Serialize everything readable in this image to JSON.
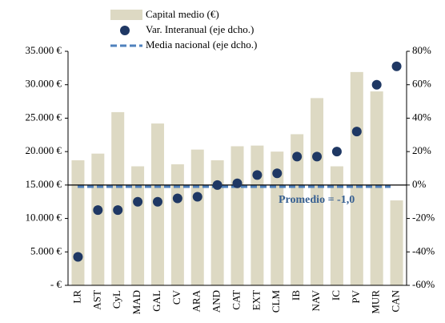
{
  "chart_data": {
    "type": "bar",
    "categories": [
      "LR",
      "AST",
      "CyL",
      "MAD",
      "GAL",
      "CV",
      "ARA",
      "AND",
      "CAT",
      "EXT",
      "CLM",
      "IB",
      "NAV",
      "IC",
      "PV",
      "MUR",
      "CAN"
    ],
    "series": [
      {
        "name": "Capital medio (€)",
        "type": "bar",
        "color": "#ddd9c3",
        "values": [
          18700,
          19700,
          25900,
          17800,
          24200,
          18100,
          20300,
          18700,
          20800,
          20900,
          20000,
          22600,
          28000,
          17800,
          31900,
          29000,
          12700
        ]
      },
      {
        "name": "Var. Interanual (eje dcho.)",
        "type": "scatter",
        "axis": "y2",
        "color": "#1f3864",
        "values": [
          -43,
          -15,
          -15,
          -10,
          -10,
          -8,
          -7,
          0,
          1,
          6,
          7,
          17,
          17,
          20,
          32,
          60,
          71
        ]
      }
    ],
    "reference_line": {
      "name": "Media nacional (eje dcho.)",
      "value": -1.0,
      "axis": "y2",
      "color": "#4f81bd"
    },
    "annotation": "Promedio = -1,0",
    "ylim": [
      0,
      35000
    ],
    "yticks": [
      {
        "value": 0,
        "label": "-  €"
      },
      {
        "value": 5000,
        "label": "5.000  €"
      },
      {
        "value": 10000,
        "label": "10.000  €"
      },
      {
        "value": 15000,
        "label": "15.000  €"
      },
      {
        "value": 20000,
        "label": "20.000  €"
      },
      {
        "value": 25000,
        "label": "25.000  €"
      },
      {
        "value": 30000,
        "label": "30.000  €"
      },
      {
        "value": 35000,
        "label": "35.000  €"
      }
    ],
    "y2lim": [
      -60,
      80
    ],
    "y2ticks": [
      {
        "value": -60,
        "label": "-60%"
      },
      {
        "value": -40,
        "label": "-40%"
      },
      {
        "value": -20,
        "label": "-20%"
      },
      {
        "value": 0,
        "label": "0%"
      },
      {
        "value": 20,
        "label": "20%"
      },
      {
        "value": 40,
        "label": "40%"
      },
      {
        "value": 60,
        "label": "60%"
      },
      {
        "value": 80,
        "label": "80%"
      }
    ],
    "legend": "top"
  }
}
